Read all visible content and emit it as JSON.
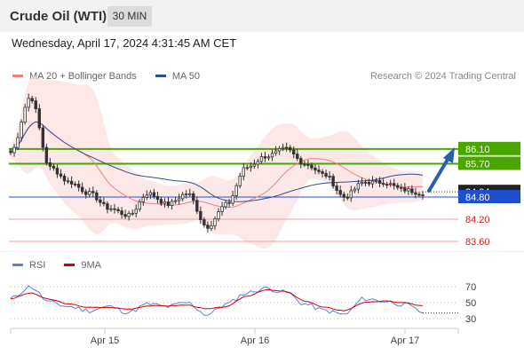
{
  "header": {
    "title": "Crude Oil (WTI)",
    "timeframe": "30 MIN"
  },
  "datetime": "Wednesday, April 17, 2024 4:31:45 AM CET",
  "legend": {
    "ma_bb": "MA 20 + Bollinger Bands",
    "ma50": "MA 50",
    "credit": "Research © 2024 Trading Central"
  },
  "rsi_legend": {
    "rsi": "RSI",
    "ma9": "9MA"
  },
  "colors": {
    "ma_bb": "#f08080",
    "ma50": "#2c4f8f",
    "rsi": "#5c7ee0",
    "ma9": "#d40000",
    "green_level": "#4aa500",
    "blue_level": "#1f4fcf",
    "red_level": "#f0a0a0",
    "candle": "#333333"
  },
  "chart_data": {
    "type": "candlestick",
    "x_ticks": [
      "Apr 15",
      "Apr 16",
      "Apr 17"
    ],
    "price_ticks": [
      "86.10",
      "85.70",
      "84.94",
      "84.80",
      "84.20",
      "83.60"
    ],
    "current_price": "84.94",
    "levels": [
      {
        "value": 86.1,
        "label": "86.10",
        "kind": "resistance"
      },
      {
        "value": 85.7,
        "label": "85.70",
        "kind": "resistance"
      },
      {
        "value": 84.8,
        "label": "84.80",
        "kind": "pivot"
      },
      {
        "value": 84.2,
        "label": "84.20",
        "kind": "support"
      },
      {
        "value": 83.6,
        "label": "83.60",
        "kind": "support"
      }
    ],
    "price_approx": [
      86.0,
      87.5,
      85.6,
      85.2,
      84.9,
      84.5,
      84.3,
      84.9,
      84.6,
      84.9,
      84.0,
      84.6,
      85.6,
      85.9,
      86.1,
      85.7,
      85.4,
      84.8,
      85.2,
      85.2,
      85.0,
      84.9
    ],
    "rsi_ticks": [
      "70",
      "50",
      "30"
    ],
    "rsi_approx": [
      55,
      70,
      50,
      45,
      40,
      45,
      38,
      48,
      45,
      50,
      35,
      48,
      62,
      68,
      63,
      48,
      40,
      35,
      55,
      52,
      48,
      38
    ],
    "ma9_approx": [
      55,
      62,
      54,
      48,
      44,
      44,
      42,
      46,
      46,
      47,
      42,
      45,
      58,
      66,
      64,
      52,
      44,
      40,
      50,
      52,
      50,
      46
    ]
  }
}
